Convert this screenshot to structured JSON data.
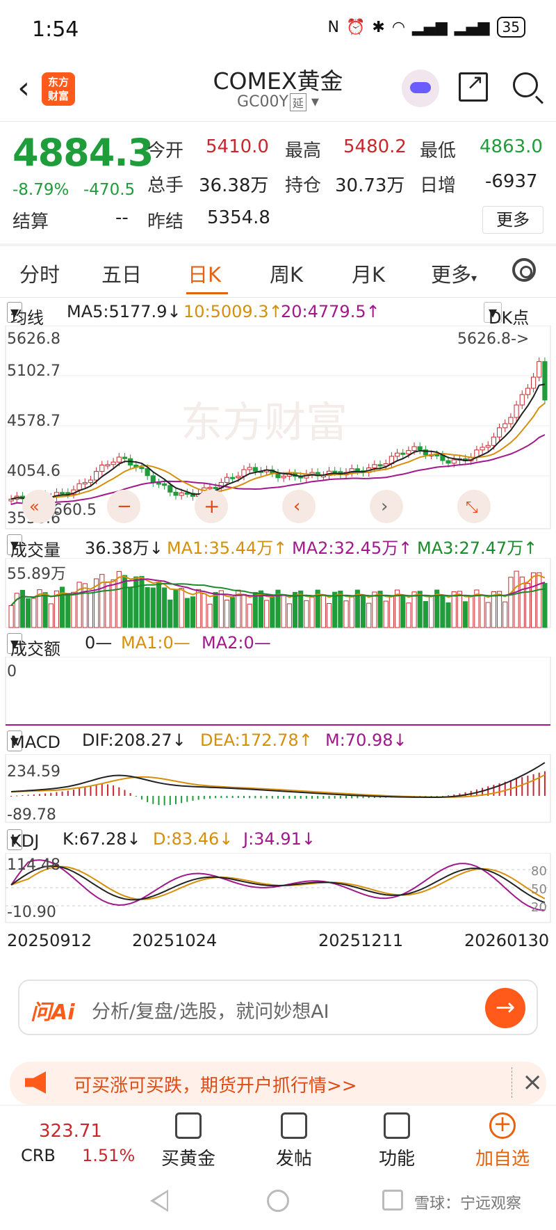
{
  "status_bar": {
    "time": "1:54",
    "battery": "35"
  },
  "header": {
    "title": "COMEX黄金",
    "code": "GC00Y",
    "delay_tag": "延"
  },
  "quote": {
    "price": "4884.3",
    "change_pct": "-8.79%",
    "change": "-470.5",
    "open_label": "今开",
    "open": "5410.0",
    "high_label": "最高",
    "high": "5480.2",
    "low_label": "最低",
    "low": "4863.0",
    "volume_label": "总手",
    "volume": "36.38万",
    "oi_label": "持仓",
    "oi": "30.73万",
    "daily_inc_label": "日增",
    "daily_inc": "-6937",
    "settle_label": "结算",
    "settle": "--",
    "prev_settle_label": "昨结",
    "prev_settle": "5354.8",
    "more": "更多"
  },
  "tabs": [
    "分时",
    "五日",
    "日K",
    "周K",
    "月K",
    "更多"
  ],
  "active_tab": "日K",
  "ma_row": {
    "select": "均线",
    "ma5": "MA5:5177.9↓",
    "ma10": "10:5009.3↑",
    "ma20": "20:4779.5↑",
    "dk": "DK点"
  },
  "price_axis": {
    "top": "5626.8",
    "l2": "5102.7",
    "l3": "4578.7",
    "l4": "4054.6",
    "bottom": "3530.6",
    "max_marker": "5626.8->",
    "min_marker": "3660.5"
  },
  "volume_row": {
    "select": "成交量",
    "value": "36.38万↓",
    "ma1": "MA1:35.44万↑",
    "ma2": "MA2:32.45万↑",
    "ma3": "MA3:27.47万↑",
    "axis_top": "55.89万"
  },
  "amount_row": {
    "select": "成交额",
    "value": "0—",
    "ma1": "MA1:0—",
    "ma2": "MA2:0—",
    "axis": "0"
  },
  "macd_row": {
    "select": "MACD",
    "dif": "DIF:208.27↓",
    "dea": "DEA:172.78↑",
    "m": "M:70.98↓",
    "axis_top": "234.59",
    "axis_bottom": "-89.78"
  },
  "kdj_row": {
    "select": "KDJ",
    "k": "K:67.28↓",
    "d": "D:83.46↓",
    "j": "J:34.91↓",
    "axis_top": "114.48",
    "axis_bottom": "-10.90",
    "r80": "80",
    "r50": "50",
    "r20": "20"
  },
  "dates": [
    "20250912",
    "20251024",
    "20251211",
    "20260130"
  ],
  "ask_ai": {
    "logo": "问Ai",
    "placeholder": "分析/复盘/选股，就问妙想AI"
  },
  "promo": {
    "text": "可买涨可买跌，期货开户抓行情>>"
  },
  "bottom_nav": {
    "crb_value": "323.71",
    "crb_label": "CRB",
    "crb_pct": "1.51%",
    "items": [
      "买黄金",
      "发帖",
      "功能",
      "加自选"
    ]
  },
  "watermark": "雪球：宁远观察",
  "colors": {
    "up": "#c8282d",
    "down": "#1f9d3a",
    "accent": "#e8620e",
    "ma5": "#222222",
    "ma10": "#d58f0a",
    "ma20": "#a0188c"
  }
}
